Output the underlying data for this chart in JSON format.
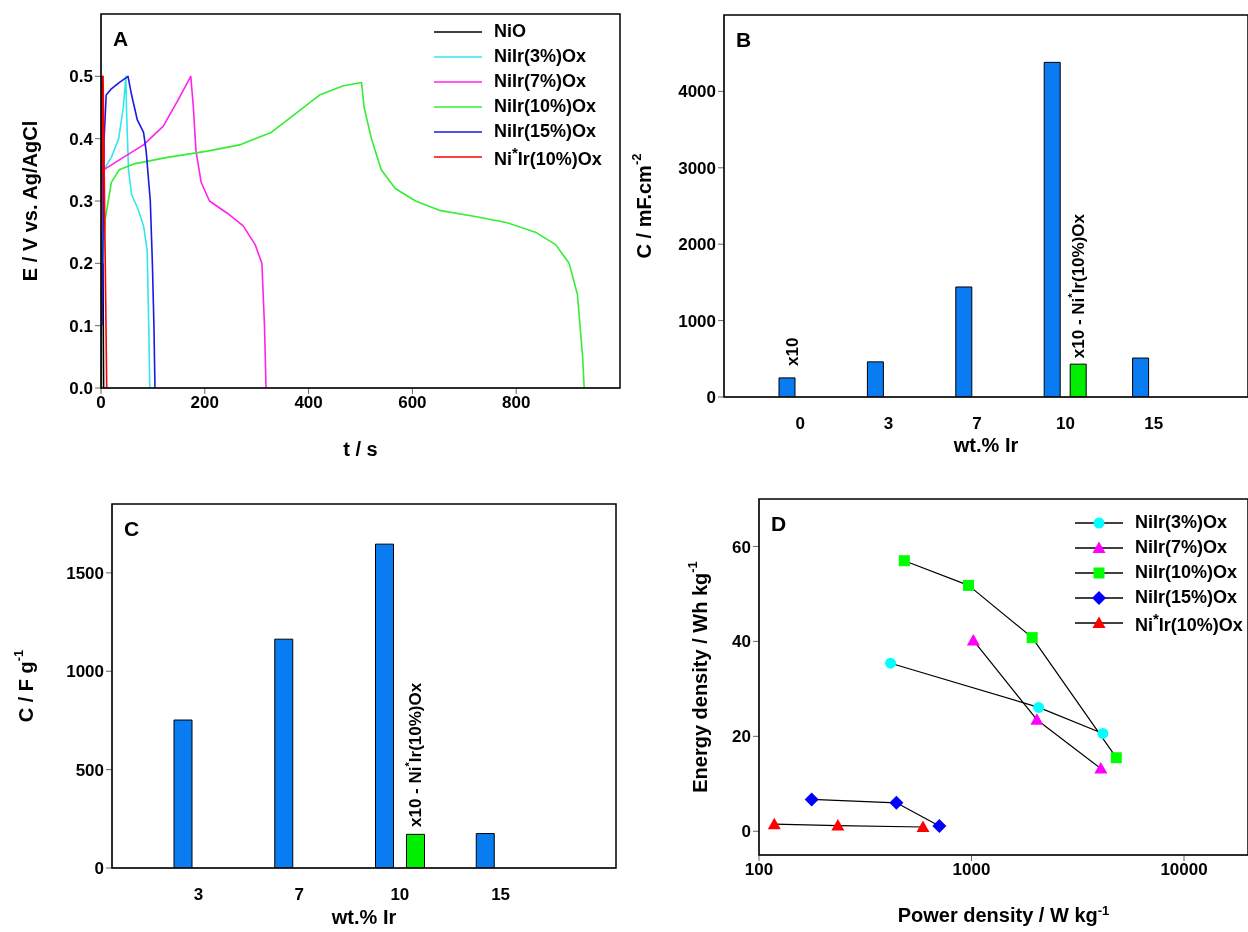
{
  "chart_data": [
    {
      "type": "line",
      "title": "A",
      "xlabel": "t / s",
      "ylabel": "E / V vs. Ag/AgCl",
      "xlim": [
        0,
        1000
      ],
      "xticks": [
        0,
        200,
        400,
        600,
        800
      ],
      "ylim": [
        0,
        0.6
      ],
      "yticks": [
        {
          "value": 0,
          "label": "0.0"
        },
        0.1,
        0.2,
        0.3,
        0.4,
        0.5
      ],
      "legend": "top right",
      "marker": "none",
      "line_style": "solid",
      "series": [
        {
          "name": "NiO",
          "color": "#000000",
          "x": [
            0,
            2,
            5
          ],
          "values": [
            0,
            0.5,
            0
          ]
        },
        {
          "name": "NiIr(3%)Ox",
          "color": "#33e6ee",
          "x": [
            3,
            5,
            20,
            34,
            43,
            48,
            49,
            53,
            59,
            70,
            82,
            89,
            92,
            94
          ],
          "values": [
            0.2,
            0.35,
            0.37,
            0.4,
            0.45,
            0.5,
            0.45,
            0.35,
            0.31,
            0.29,
            0.26,
            0.22,
            0.1,
            0
          ]
        },
        {
          "name": "NiIr(7%)Ox",
          "color": "#ff22ee",
          "x": [
            4,
            5,
            43,
            82,
            120,
            147,
            173,
            178,
            183,
            193,
            209,
            244,
            274,
            297,
            310,
            315,
            318
          ],
          "values": [
            0.3,
            0.35,
            0.37,
            0.39,
            0.42,
            0.46,
            0.5,
            0.45,
            0.38,
            0.33,
            0.3,
            0.28,
            0.26,
            0.23,
            0.2,
            0.1,
            0
          ]
        },
        {
          "name": "NiIr(10%)Ox",
          "color": "#33ee33",
          "x": [
            4,
            8,
            20,
            35,
            66,
            128,
            205,
            267,
            328,
            375,
            421,
            467,
            502,
            507,
            521,
            540,
            567,
            606,
            652,
            721,
            783,
            837,
            876,
            902,
            918,
            928,
            931
          ],
          "values": [
            0.2,
            0.27,
            0.33,
            0.35,
            0.36,
            0.37,
            0.38,
            0.39,
            0.41,
            0.44,
            0.47,
            0.485,
            0.49,
            0.45,
            0.4,
            0.35,
            0.32,
            0.3,
            0.285,
            0.275,
            0.265,
            0.25,
            0.23,
            0.2,
            0.15,
            0.05,
            0
          ]
        },
        {
          "name": "NiIr(15%)Ox",
          "color": "#1a1ae6",
          "x": [
            2,
            6,
            10,
            20,
            35,
            52,
            59,
            70,
            82,
            87,
            95,
            99,
            102,
            104
          ],
          "values": [
            0.1,
            0.4,
            0.47,
            0.48,
            0.49,
            0.5,
            0.47,
            0.43,
            0.41,
            0.38,
            0.3,
            0.2,
            0.1,
            0
          ]
        },
        {
          "name": "Ni$^{*}$Ir(10%)Ox",
          "color": "#ff0000",
          "x": [
            1,
            4,
            11
          ],
          "values": [
            0.25,
            0.5,
            0
          ]
        }
      ]
    },
    {
      "type": "bar",
      "title": "B",
      "xlabel": "wt.% Ir",
      "ylabel": "C / mF.cm$^{-2}$",
      "categories": [
        "0",
        "3",
        "7",
        "10",
        "15"
      ],
      "ylim": [
        0,
        5000
      ],
      "yticks": [
        0,
        1000,
        2000,
        3000,
        4000
      ],
      "series": [
        {
          "color": "#0a7cf2",
          "values": [
            250,
            460,
            1440,
            4380,
            510
          ]
        },
        {
          "color": "#00ee00",
          "values": [
            null,
            null,
            null,
            430,
            null
          ]
        }
      ],
      "annotations": [
        "x10",
        {
          "text": "x10 - Ni$^{*}$Ir(10%)Ox",
          "x": "10",
          "y": 430
        }
      ]
    },
    {
      "type": "bar",
      "title": "C",
      "xlabel": "wt.% Ir",
      "ylabel": "C / F g$^{-1}$",
      "categories": [
        "3",
        "7",
        "10",
        "15"
      ],
      "ylim": [
        0,
        1850
      ],
      "yticks": [
        0,
        500,
        1000,
        1500
      ],
      "series": [
        {
          "color": "#0a7cf2",
          "values": [
            752,
            1163,
            1646,
            175
          ]
        },
        {
          "color": "#00ee00",
          "values": [
            null,
            null,
            171,
            null
          ]
        }
      ],
      "annotations": [
        "x10 - Ni$^{*}$Ir(10%)Ox"
      ]
    },
    {
      "type": "line",
      "title": "D",
      "xlabel": "Power density / W kg$^{-1}$",
      "ylabel": "Energy density / Wh kg$^{-1}$",
      "log": "x",
      "xlim": [
        100,
        20000
      ],
      "xticks": [
        100,
        1000,
        10000
      ],
      "ylim": [
        -5,
        70
      ],
      "yticks": [
        0,
        20,
        40,
        60
      ],
      "legend": "top right",
      "line_style": "solid",
      "series": [
        {
          "name": "NiIr(3%)Ox",
          "color": "#00ffff",
          "marker": "circle",
          "x": [
            416,
            2070,
            4150
          ],
          "values": [
            35.4,
            26.1,
            20.6
          ]
        },
        {
          "name": "NiIr(7%)Ox",
          "color": "#ff00ff",
          "marker": "triangle",
          "x": [
            1020,
            2030,
            4060
          ],
          "values": [
            40.2,
            23.5,
            13.2
          ]
        },
        {
          "name": "NiIr(10%)Ox",
          "color": "#00ff00",
          "marker": "square",
          "x": [
            483,
            968,
            1930,
            4800
          ],
          "values": [
            57.0,
            51.8,
            40.8,
            15.5
          ]
        },
        {
          "name": "NiIr(15%)Ox",
          "color": "#0000ff",
          "marker": "diamond",
          "x": [
            177,
            443,
            706
          ],
          "values": [
            6.7,
            6.0,
            1.1
          ]
        },
        {
          "name": "Ni$^{*}$Ir(10%)Ox",
          "color": "#ff0000",
          "marker": "triangle",
          "x": [
            118,
            235,
            591
          ],
          "values": [
            1.5,
            1.2,
            0.9
          ]
        }
      ]
    }
  ]
}
